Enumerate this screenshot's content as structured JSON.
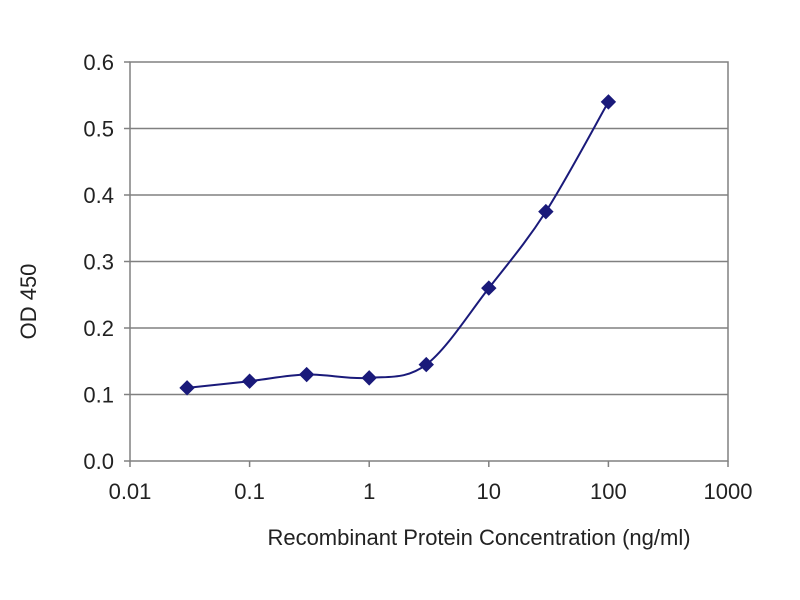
{
  "chart_data": {
    "type": "scatter",
    "title": "",
    "xlabel": "Recombinant Protein Concentration (ng/ml)",
    "ylabel": "OD 450",
    "x_scale": "log",
    "xlim": [
      0.01,
      1000
    ],
    "ylim": [
      0,
      0.6
    ],
    "x_ticks": [
      "0.01",
      "0.1",
      "1",
      "10",
      "100",
      "1000"
    ],
    "y_ticks": [
      "0.0",
      "0.1",
      "0.2",
      "0.3",
      "0.4",
      "0.5",
      "0.6"
    ],
    "grid": "horizontal",
    "legend": "none",
    "series": [
      {
        "x": [
          0.03,
          0.1,
          0.3,
          1,
          3,
          10,
          30,
          100
        ],
        "y": [
          0.11,
          0.12,
          0.13,
          0.125,
          0.145,
          0.26,
          0.375,
          0.54
        ],
        "color": "#1a1a7a",
        "marker": "diamond",
        "curve": "smooth"
      }
    ]
  }
}
